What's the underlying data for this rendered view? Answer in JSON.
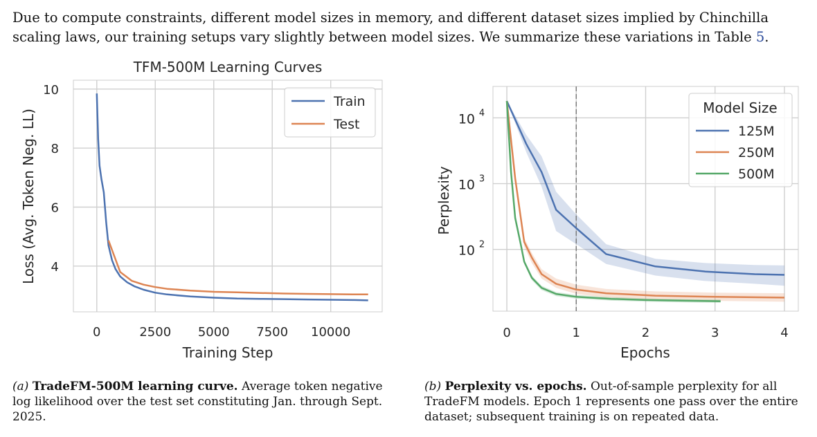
{
  "intro": {
    "text_before": "Due to compute constraints, different model sizes in memory, and different dataset sizes implied by Chinchilla scaling laws, our training setups vary slightly between model sizes. We summarize these variations in Table ",
    "ref": "5",
    "text_after": "."
  },
  "colors": {
    "blue": "#4c72b0",
    "orange": "#dd8452",
    "green": "#55a868",
    "grid": "#cfcfcf",
    "frame": "#cccccc"
  },
  "captions": {
    "a": {
      "label": "(a)",
      "title": "TradeFM-500M learning curve.",
      "body": "Average token negative log likelihood over the test set constituting Jan. through Sept. 2025."
    },
    "b": {
      "label": "(b)",
      "title": "Perplexity vs. epochs.",
      "body": "Out-of-sample perplexity for all TradeFM models. Epoch 1 represents one pass over the entire dataset; subsequent training is on repeated data."
    }
  },
  "chart_data": [
    {
      "type": "line",
      "title": "TFM-500M Learning Curves",
      "xlabel": "Training Step",
      "ylabel": "Loss (Avg. Token Neg. LL)",
      "xlim": [
        -1000,
        12200
      ],
      "ylim": [
        2.45,
        10.3
      ],
      "xticks": [
        0,
        2500,
        5000,
        7500,
        10000
      ],
      "xtick_labels": [
        "0",
        "2500",
        "5000",
        "7500",
        "10000"
      ],
      "yticks": [
        4,
        6,
        8,
        10
      ],
      "ytick_labels": [
        "4",
        "6",
        "8",
        "10"
      ],
      "grid": true,
      "legend": "top-right",
      "series": [
        {
          "name": "Train",
          "color": "#4c72b0",
          "x": [
            0,
            60,
            120,
            200,
            300,
            400,
            500,
            650,
            800,
            1000,
            1300,
            1600,
            2000,
            2500,
            3000,
            4000,
            5000,
            6000,
            7000,
            8000,
            9000,
            10000,
            11000,
            11600
          ],
          "y": [
            9.85,
            8.3,
            7.4,
            6.95,
            6.5,
            5.5,
            4.7,
            4.2,
            3.9,
            3.65,
            3.45,
            3.32,
            3.2,
            3.1,
            3.04,
            2.97,
            2.93,
            2.9,
            2.89,
            2.88,
            2.87,
            2.86,
            2.85,
            2.84
          ]
        },
        {
          "name": "Test",
          "color": "#dd8452",
          "x": [
            500,
            1000,
            1500,
            2000,
            2500,
            3000,
            4000,
            5000,
            6000,
            7000,
            8000,
            9000,
            10000,
            11000,
            11600
          ],
          "y": [
            4.87,
            3.8,
            3.5,
            3.37,
            3.29,
            3.23,
            3.17,
            3.13,
            3.11,
            3.09,
            3.07,
            3.06,
            3.05,
            3.04,
            3.04
          ]
        }
      ]
    },
    {
      "type": "line",
      "title": "",
      "xlabel": "Epochs",
      "ylabel": "Perplexity",
      "yscale": "log",
      "xlim": [
        -0.2,
        4.2
      ],
      "ylim": [
        11.5,
        30000
      ],
      "xticks": [
        0,
        1,
        2,
        3,
        4
      ],
      "xtick_labels": [
        "0",
        "1",
        "2",
        "3",
        "4"
      ],
      "yticks": [
        100,
        1000,
        10000
      ],
      "ytick_labels": [
        "10",
        "10",
        "10"
      ],
      "ytick_exponents": [
        "2",
        "3",
        "4"
      ],
      "vline_x": 1,
      "grid": true,
      "legend": "top-right",
      "legend_title": "Model Size",
      "series": [
        {
          "name": "125M",
          "color": "#4c72b0",
          "x": [
            0,
            0.28,
            0.5,
            0.71,
            1.0,
            1.43,
            2.14,
            2.86,
            3.57,
            4.0
          ],
          "y": [
            18000,
            4000,
            1500,
            400,
            210,
            85,
            55,
            46,
            42,
            41
          ],
          "lower": [
            18000,
            3000,
            900,
            190,
            120,
            60,
            40,
            33,
            30,
            28
          ],
          "upper": [
            18000,
            5500,
            2600,
            750,
            340,
            120,
            72,
            62,
            58,
            57
          ]
        },
        {
          "name": "250M",
          "color": "#dd8452",
          "x": [
            0,
            0.12,
            0.25,
            0.36,
            0.5,
            0.71,
            1.0,
            1.43,
            2.14,
            3.0,
            4.0
          ],
          "y": [
            18000,
            1200,
            130,
            75,
            42,
            30,
            24.5,
            21.5,
            19.8,
            19,
            18.5
          ],
          "lower": [
            18000,
            1000,
            110,
            62,
            36,
            26,
            21,
            18.5,
            17.2,
            16.5,
            16
          ],
          "upper": [
            18000,
            1400,
            150,
            88,
            50,
            36,
            29,
            25,
            23,
            22,
            21.5
          ]
        },
        {
          "name": "500M",
          "color": "#55a868",
          "x": [
            0,
            0.06,
            0.12,
            0.2,
            0.25,
            0.36,
            0.5,
            0.71,
            1.0,
            1.5,
            2.0,
            2.5,
            3.08
          ],
          "y": [
            18000,
            1500,
            300,
            120,
            65,
            37,
            26,
            21,
            19,
            17.7,
            17,
            16.6,
            16.3
          ],
          "lower": [
            18000,
            1400,
            270,
            110,
            60,
            34,
            24,
            19.5,
            17.8,
            16.6,
            16,
            15.6,
            15.4
          ],
          "upper": [
            18000,
            1600,
            330,
            130,
            70,
            40,
            28,
            22.5,
            20.3,
            18.8,
            18,
            17.6,
            17.3
          ]
        }
      ]
    }
  ]
}
